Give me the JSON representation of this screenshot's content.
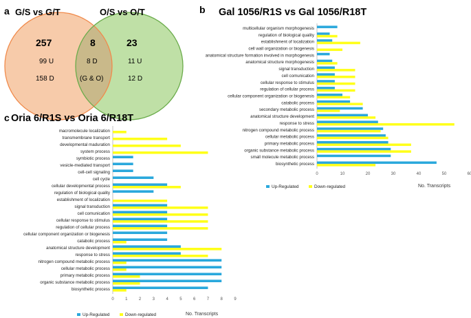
{
  "panels": {
    "a": "a",
    "b": "b",
    "c": "c"
  },
  "venn": {
    "left_title": "G/S vs G/T",
    "right_title": "O/S vs O/T",
    "left_total": "257",
    "left_up": "99 U",
    "left_down": "158 D",
    "overlap_total": "8",
    "overlap_down": "8 D",
    "overlap_note": "(G & O)",
    "right_total": "23",
    "right_up": "11 U",
    "right_down": "12 D",
    "colors": {
      "left_fill": "#f7cbaa",
      "left_stroke": "#f08a4b",
      "right_fill": "#bfe0a6",
      "right_stroke": "#6aab4a",
      "overlap_fill": "#c9b98a"
    }
  },
  "colors": {
    "up": "#2aa8dc",
    "down": "#ffff1a"
  },
  "chart_data": [
    {
      "type": "bar",
      "orientation": "horizontal",
      "title": "Gal 1056/R1S   vs   Gal 1056/R18T",
      "xlabel": "No. Transcripts",
      "xlim": [
        0,
        60
      ],
      "xticks": [
        0,
        10,
        20,
        30,
        40,
        50,
        60
      ],
      "legend": [
        "Up-Regulated",
        "Down-regulated"
      ],
      "legend_position": "bottom-left",
      "categories": [
        "multicellular organism morphogenesis",
        "regulation of biological quality",
        "establishment of localization",
        "cell wall organization or biogenesis",
        "anatomical structure formation involved in morphogenesis",
        "anatomical structure morphogenesis",
        "signal transduction",
        "cell comunication",
        "cellular response to stimulus",
        "regulation of cellular process",
        "cellular component organization or biogenesis",
        "catabolic process",
        "secondary metabolic process",
        "anatomical structure development",
        "response to stress",
        "nitrogen compound metabolic process",
        "cellular metabolic process",
        "primary metabolic process",
        "organic substance metabolic process",
        "small molecule metabolic process",
        "biosynthetic process"
      ],
      "series": [
        {
          "name": "Up-Regulated",
          "values": [
            8,
            5,
            6,
            0,
            5,
            6,
            7,
            7,
            7,
            7,
            10,
            13,
            18,
            20,
            24,
            26,
            27,
            28,
            29,
            29,
            47
          ]
        },
        {
          "name": "Down-regulated",
          "values": [
            0,
            8,
            17,
            10,
            0,
            8,
            15,
            15,
            15,
            15,
            13,
            18,
            9,
            23,
            54,
            25,
            28,
            37,
            37,
            0,
            23
          ]
        }
      ]
    },
    {
      "type": "bar",
      "orientation": "horizontal",
      "title": "Oria 6/R1S   vs   Oria 6/R18T",
      "xlabel": "No. Transcripts",
      "xlim": [
        0,
        9
      ],
      "xticks": [
        0,
        1,
        2,
        3,
        4,
        5,
        6,
        7,
        8,
        9
      ],
      "legend": [
        "Up-Regulated",
        "Down-regulated"
      ],
      "legend_position": "bottom-left",
      "categories": [
        "macromolecule localization",
        "transmembrane transport",
        "developmental maduration",
        "system process",
        "symbiotic process",
        "vesicle-mediated transport",
        "cell-cell signaling",
        "cell cycle",
        "cellular developmental process",
        "regulation of biological quality",
        "establishment of localization",
        "signal transduction",
        "cell comunication",
        "cellular response to stimulus",
        "regulation of cellular process",
        "cellular component organization or biogenesis",
        "catabolic process",
        "anatomical structure development",
        "response to stress",
        "nitrogen compound metabolic process",
        "cellular metabolic process",
        "primary metabolic process",
        "organic substance metabolic process",
        "biosynthetic process"
      ],
      "series": [
        {
          "name": "Up-Regulated",
          "values": [
            0,
            0,
            0,
            0,
            1.5,
            1.5,
            1.5,
            3,
            4,
            3,
            0,
            4,
            4,
            4,
            4,
            4,
            4,
            5,
            5,
            8,
            8,
            8,
            8,
            7
          ]
        },
        {
          "name": "Down-regulated",
          "values": [
            1,
            4,
            5,
            7,
            0,
            0,
            0,
            0,
            5,
            0,
            4,
            7,
            7,
            7,
            7,
            0,
            1,
            8,
            7,
            1,
            1,
            2,
            2,
            1
          ]
        }
      ]
    }
  ]
}
